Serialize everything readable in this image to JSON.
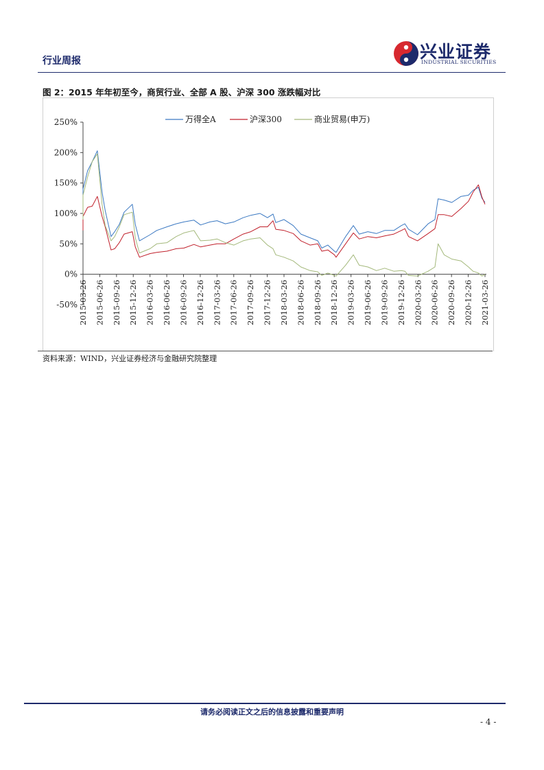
{
  "header": {
    "title": "行业周报"
  },
  "logo": {
    "cn": "兴业证券",
    "en": "INDUSTRIAL SECURITIES",
    "colors": {
      "blue": "#1d2a6b",
      "red": "#d7282f"
    }
  },
  "figure": {
    "title": "图 2：2015 年年初至今，商贸行业、全部 A 股、沪深 300 涨跌幅对比"
  },
  "source": "资料来源：WIND，兴业证券经济与金融研究院整理",
  "footer": {
    "note": "请务必阅读正文之后的信息披露和重要声明",
    "page": "- 4 -"
  },
  "chart_data": {
    "type": "line",
    "title": "",
    "xlabel": "",
    "ylabel": "",
    "ylim": [
      -0.5,
      2.5
    ],
    "yticks": [
      -0.5,
      0,
      0.5,
      1.0,
      1.5,
      2.0,
      2.5
    ],
    "ytick_labels": [
      "-50%",
      "0%",
      "50%",
      "100%",
      "150%",
      "200%",
      "250%"
    ],
    "xtick_labels": [
      "2015-03-26",
      "2015-06-26",
      "2015-09-26",
      "2015-12-26",
      "2016-03-26",
      "2016-06-26",
      "2016-09-26",
      "2016-12-26",
      "2017-03-26",
      "2017-06-26",
      "2017-09-26",
      "2017-12-26",
      "2018-03-26",
      "2018-06-26",
      "2018-09-26",
      "2018-12-26",
      "2019-03-26",
      "2019-06-26",
      "2019-09-26",
      "2019-12-26",
      "2020-03-26",
      "2020-06-26",
      "2020-09-26",
      "2020-12-26",
      "2021-03-26"
    ],
    "legend_position": "top",
    "grid": false,
    "series": [
      {
        "name": "万得全A",
        "color": "#3a78c2",
        "x": [
          "2015-01-05",
          "2015-02-15",
          "2015-03-26",
          "2015-04-20",
          "2015-05-15",
          "2015-06-12",
          "2015-07-08",
          "2015-07-25",
          "2015-08-26",
          "2015-09-15",
          "2015-10-10",
          "2015-11-05",
          "2015-12-20",
          "2016-01-05",
          "2016-01-28",
          "2016-03-26",
          "2016-05-01",
          "2016-06-26",
          "2016-08-15",
          "2016-09-26",
          "2016-11-20",
          "2016-12-26",
          "2017-02-15",
          "2017-03-26",
          "2017-05-10",
          "2017-06-26",
          "2017-08-15",
          "2017-09-26",
          "2017-11-15",
          "2017-12-26",
          "2018-01-25",
          "2018-02-09",
          "2018-03-26",
          "2018-05-15",
          "2018-06-26",
          "2018-08-15",
          "2018-09-26",
          "2018-10-18",
          "2018-11-20",
          "2018-12-26",
          "2019-01-04",
          "2019-02-25",
          "2019-04-08",
          "2019-05-10",
          "2019-06-26",
          "2019-08-12",
          "2019-09-26",
          "2019-11-15",
          "2019-12-26",
          "2020-01-14",
          "2020-02-03",
          "2020-03-23",
          "2020-05-20",
          "2020-06-26",
          "2020-07-13",
          "2020-08-15",
          "2020-09-26",
          "2020-11-15",
          "2020-12-26",
          "2021-01-20",
          "2021-02-18",
          "2021-03-09",
          "2021-03-26"
        ],
        "values": [
          1.02,
          1.12,
          1.4,
          1.7,
          1.85,
          2.03,
          1.35,
          1.05,
          0.62,
          0.7,
          0.82,
          1.02,
          1.15,
          0.82,
          0.55,
          0.65,
          0.72,
          0.78,
          0.83,
          0.86,
          0.89,
          0.81,
          0.86,
          0.88,
          0.83,
          0.86,
          0.93,
          0.97,
          1.0,
          0.93,
          0.99,
          0.85,
          0.9,
          0.8,
          0.66,
          0.6,
          0.55,
          0.43,
          0.48,
          0.38,
          0.36,
          0.62,
          0.8,
          0.66,
          0.7,
          0.67,
          0.72,
          0.72,
          0.8,
          0.83,
          0.74,
          0.65,
          0.83,
          0.9,
          1.24,
          1.22,
          1.18,
          1.28,
          1.3,
          1.38,
          1.43,
          1.25,
          1.18
        ]
      },
      {
        "name": "沪深300",
        "color": "#c01f2a",
        "x": [
          "2015-01-05",
          "2015-02-15",
          "2015-03-26",
          "2015-04-20",
          "2015-05-15",
          "2015-06-12",
          "2015-07-08",
          "2015-07-25",
          "2015-08-26",
          "2015-09-15",
          "2015-10-10",
          "2015-11-05",
          "2015-12-20",
          "2016-01-05",
          "2016-01-28",
          "2016-03-26",
          "2016-05-01",
          "2016-06-26",
          "2016-08-15",
          "2016-09-26",
          "2016-11-20",
          "2016-12-26",
          "2017-02-15",
          "2017-03-26",
          "2017-05-10",
          "2017-06-26",
          "2017-08-15",
          "2017-09-26",
          "2017-11-15",
          "2017-12-26",
          "2018-01-25",
          "2018-02-09",
          "2018-03-26",
          "2018-05-15",
          "2018-06-26",
          "2018-08-15",
          "2018-09-26",
          "2018-10-18",
          "2018-11-20",
          "2018-12-26",
          "2019-01-04",
          "2019-02-25",
          "2019-04-08",
          "2019-05-10",
          "2019-06-26",
          "2019-08-12",
          "2019-09-26",
          "2019-11-15",
          "2019-12-26",
          "2020-01-14",
          "2020-02-03",
          "2020-03-23",
          "2020-05-20",
          "2020-06-26",
          "2020-07-13",
          "2020-08-15",
          "2020-09-26",
          "2020-11-15",
          "2020-12-26",
          "2021-01-20",
          "2021-02-18",
          "2021-03-09",
          "2021-03-26"
        ],
        "values": [
          0.72,
          0.8,
          0.95,
          1.1,
          1.12,
          1.28,
          0.95,
          0.78,
          0.4,
          0.42,
          0.52,
          0.66,
          0.7,
          0.45,
          0.28,
          0.34,
          0.36,
          0.38,
          0.42,
          0.43,
          0.49,
          0.45,
          0.48,
          0.5,
          0.5,
          0.58,
          0.66,
          0.7,
          0.78,
          0.78,
          0.88,
          0.74,
          0.72,
          0.67,
          0.55,
          0.48,
          0.5,
          0.38,
          0.4,
          0.32,
          0.28,
          0.5,
          0.68,
          0.58,
          0.62,
          0.6,
          0.63,
          0.66,
          0.72,
          0.75,
          0.62,
          0.55,
          0.67,
          0.75,
          0.98,
          0.98,
          0.95,
          1.08,
          1.2,
          1.35,
          1.47,
          1.27,
          1.15
        ]
      },
      {
        "name": "商业贸易(申万)",
        "color": "#a3b87a",
        "x": [
          "2015-01-05",
          "2015-02-15",
          "2015-03-26",
          "2015-04-20",
          "2015-05-15",
          "2015-06-12",
          "2015-07-08",
          "2015-07-25",
          "2015-08-26",
          "2015-09-15",
          "2015-10-10",
          "2015-11-05",
          "2015-12-20",
          "2016-01-05",
          "2016-01-28",
          "2016-03-26",
          "2016-05-01",
          "2016-06-26",
          "2016-08-15",
          "2016-09-26",
          "2016-11-20",
          "2016-12-26",
          "2017-02-15",
          "2017-03-26",
          "2017-05-10",
          "2017-06-26",
          "2017-08-15",
          "2017-09-26",
          "2017-11-15",
          "2017-12-26",
          "2018-01-25",
          "2018-02-09",
          "2018-03-26",
          "2018-05-15",
          "2018-06-26",
          "2018-08-15",
          "2018-09-26",
          "2018-10-18",
          "2018-11-20",
          "2018-12-26",
          "2019-01-04",
          "2019-02-25",
          "2019-04-08",
          "2019-05-10",
          "2019-06-26",
          "2019-08-12",
          "2019-09-26",
          "2019-11-15",
          "2019-12-26",
          "2020-01-14",
          "2020-02-03",
          "2020-03-23",
          "2020-05-20",
          "2020-06-26",
          "2020-07-13",
          "2020-08-15",
          "2020-09-26",
          "2020-11-15",
          "2020-12-26",
          "2021-01-20",
          "2021-02-18",
          "2021-03-09",
          "2021-03-26"
        ],
        "values": [
          0.9,
          1.05,
          1.3,
          1.6,
          1.85,
          1.98,
          1.15,
          0.8,
          0.55,
          0.62,
          0.78,
          0.98,
          1.02,
          0.6,
          0.35,
          0.42,
          0.5,
          0.52,
          0.62,
          0.68,
          0.72,
          0.55,
          0.56,
          0.58,
          0.52,
          0.48,
          0.55,
          0.58,
          0.6,
          0.48,
          0.42,
          0.32,
          0.28,
          0.22,
          0.12,
          0.06,
          0.04,
          -0.02,
          0.02,
          -0.02,
          -0.03,
          0.15,
          0.32,
          0.15,
          0.12,
          0.06,
          0.1,
          0.05,
          0.06,
          0.05,
          -0.02,
          -0.03,
          0.05,
          0.12,
          0.5,
          0.32,
          0.25,
          0.22,
          0.12,
          0.05,
          0.02,
          -0.03,
          0.0
        ]
      }
    ]
  }
}
